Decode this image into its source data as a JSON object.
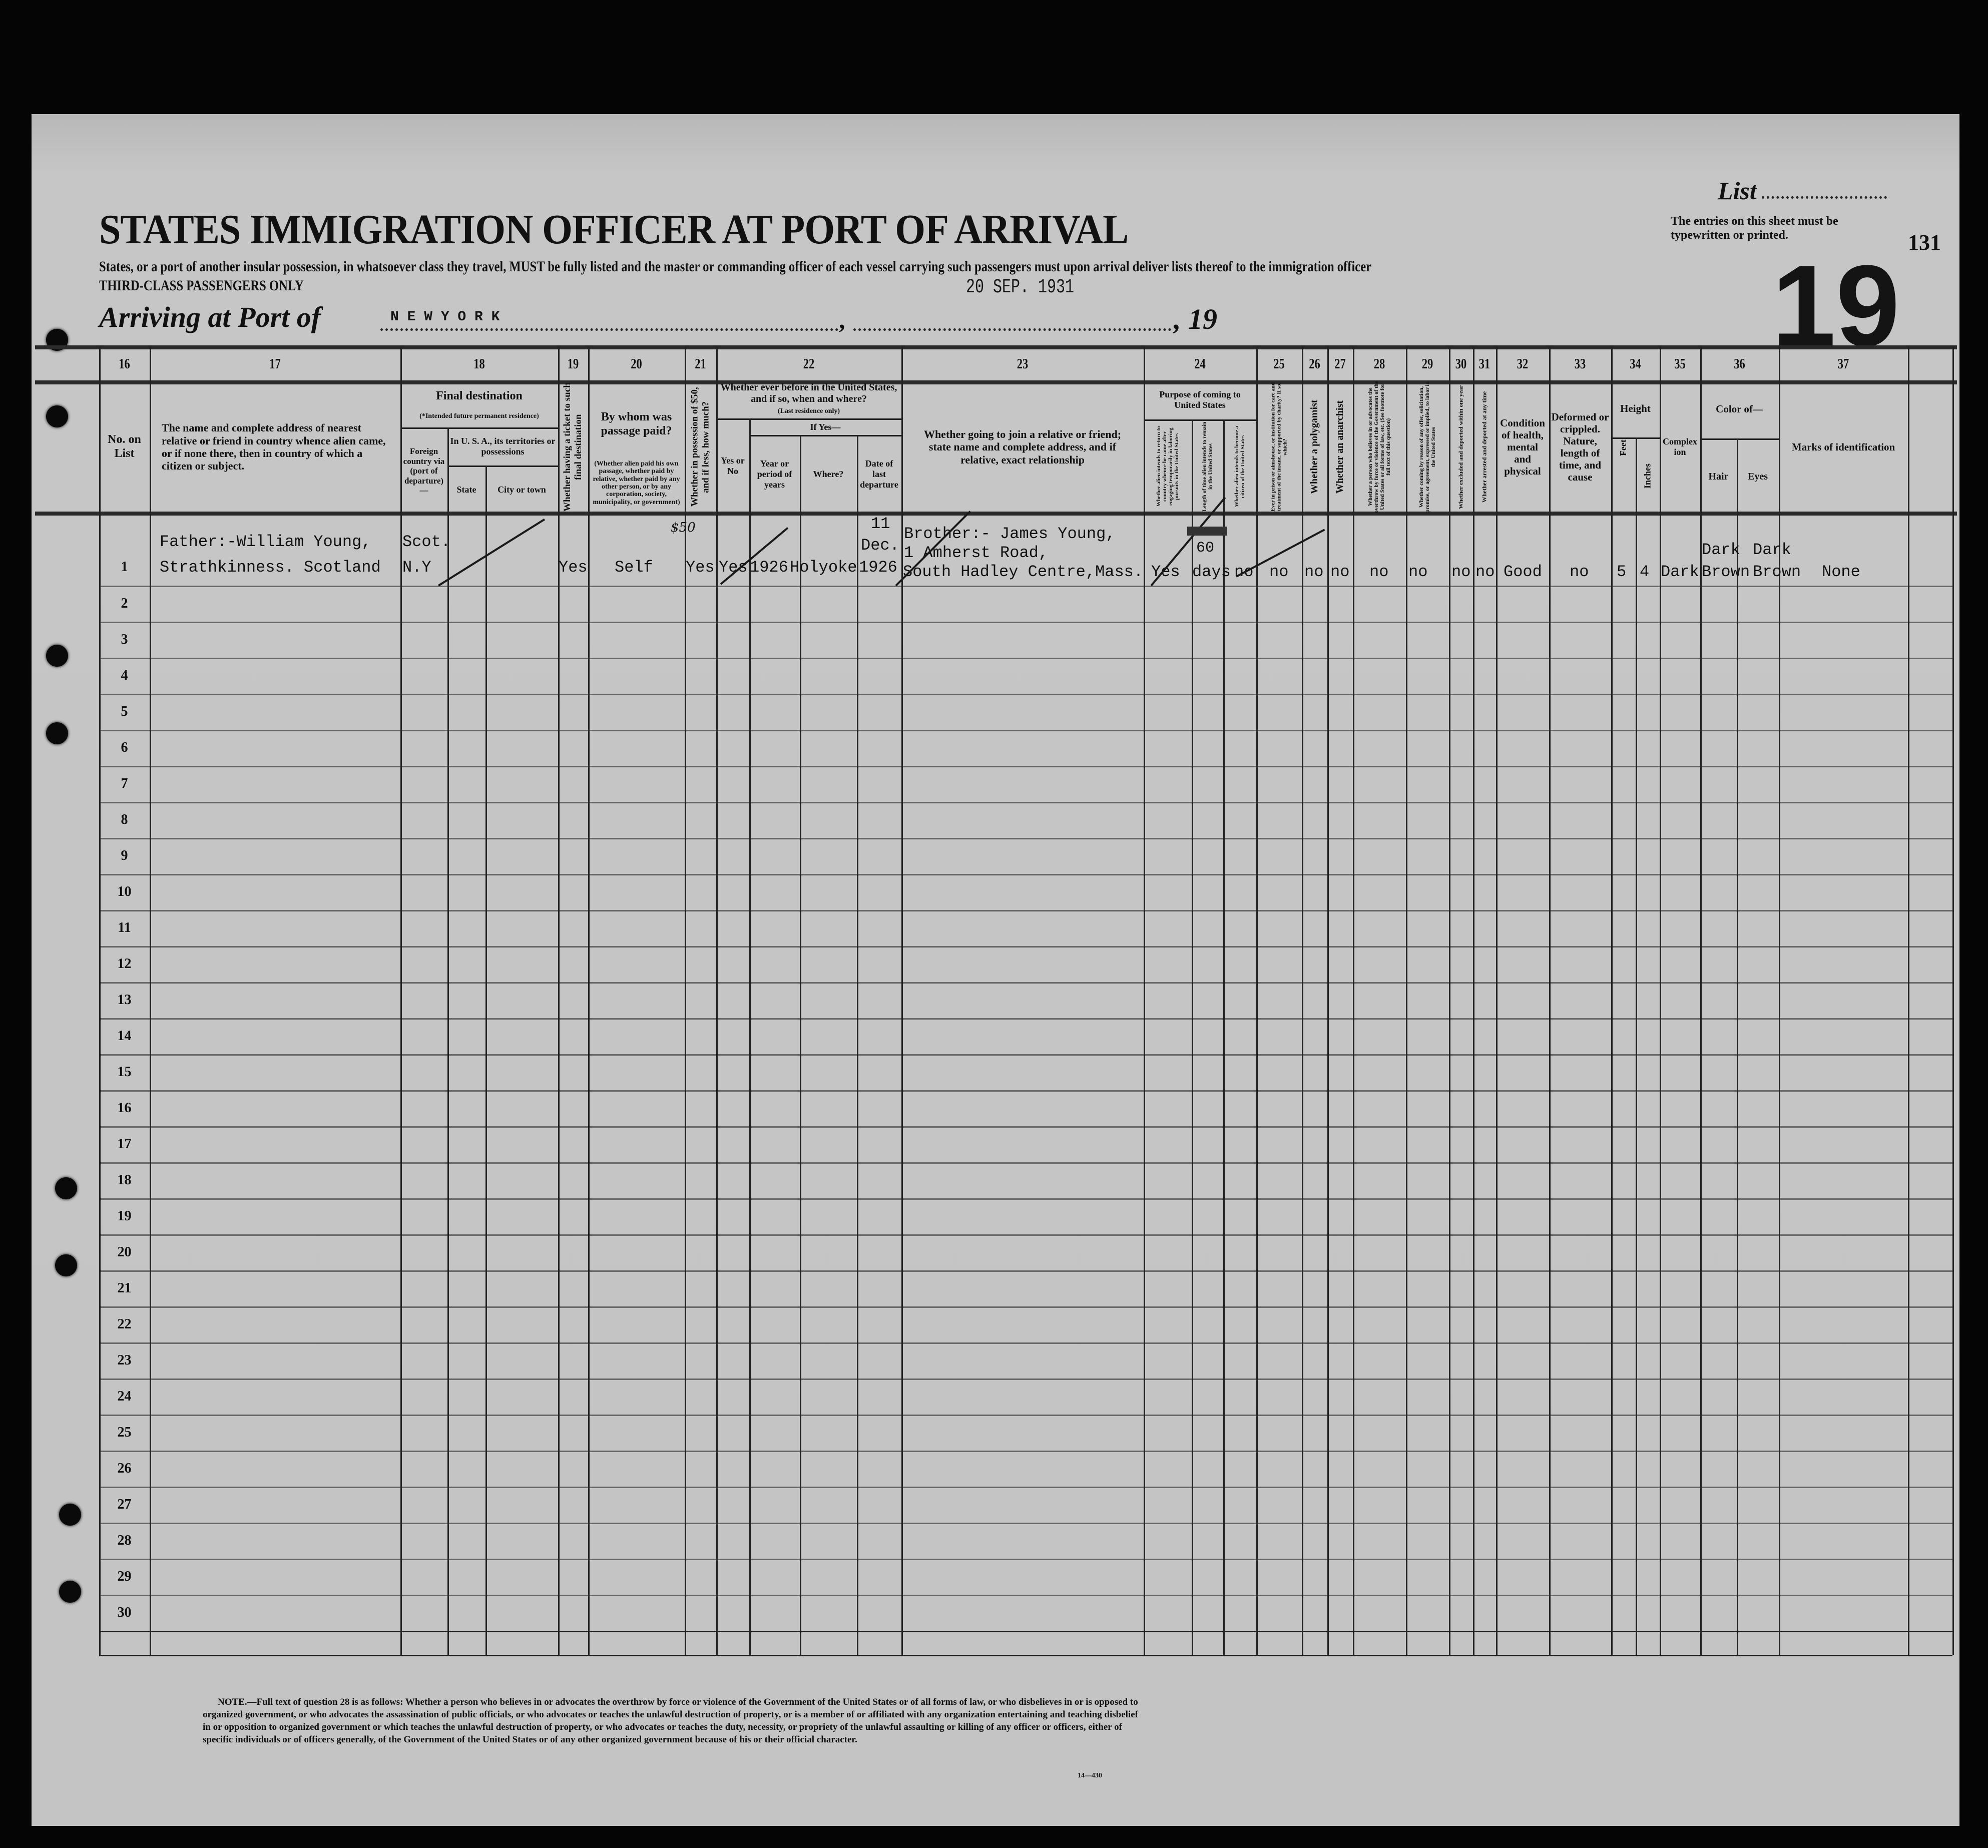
{
  "document": {
    "title": "STATES IMMIGRATION OFFICER AT PORT OF ARRIVAL",
    "subtitle": "States, or a port of another insular possession, in whatsoever class they travel, MUST be fully listed and the master or commanding officer of each vessel carrying such passengers must upon arrival deliver lists thereof to the immigration officer",
    "class_line": "THIRD-CLASS PASSENGERS ONLY",
    "date_stamp": "20 SEP. 1931",
    "arriving_label": "Arriving at Port of",
    "port": "N E W   Y O R K",
    "comma": ",",
    "year_prefix": ", 19",
    "list_label": "List",
    "instructions": "The entries on this sheet must be typewritten or printed.",
    "sheet_number": "19",
    "stamp_number": "131",
    "form_number": "14—430",
    "note": "NOTE.—Full text of question 28 is as follows: Whether a person who believes in or advocates the overthrow by force or violence of the Government of the United States or of all forms of law, or who disbelieves in or is opposed to organized government, or who advocates the assassination of public officials, or who advocates or teaches the unlawful destruction of property, or is a member of or affiliated with any organization entertaining and teaching disbelief in or opposition to organized government or which teaches the unlawful destruction of property, or who advocates or teaches the duty, necessity, or propriety of the unlawful assaulting or killing of any officer or officers, either of specific individuals or of officers generally, of the Government of the United States or of any other organized government because of his or their official character."
  },
  "column_numbers": [
    "16",
    "17",
    "18",
    "19",
    "20",
    "21",
    "22",
    "23",
    "24",
    "25",
    "26",
    "27",
    "28",
    "29",
    "30",
    "31",
    "32",
    "33",
    "34",
    "35",
    "36",
    "37"
  ],
  "headers": {
    "c16": "No. on List",
    "c17": "The name and complete address of nearest relative or friend in country whence alien came, or if none there, then in country of which a citizen or subject.",
    "c18_title": "Final destination",
    "c18_note": "(*Intended future permanent residence)",
    "c18_foreign": "Foreign country via (port of departure)—",
    "c18_usa": "In U. S. A., its territories or possessions",
    "c18_state": "State",
    "c18_city": "City or town",
    "c19": "Whether having a ticket to such final destination",
    "c20_title": "By whom was passage paid?",
    "c20_note": "(Whether alien paid his own passage, whether paid by relative, whether paid by any other person, or by any corporation, society, municipality, or government)",
    "c21": "Whether in possession of $50, and if less, how much?",
    "c22_title": "Whether ever before in the United States, and if so, when and where?",
    "c22_note": "(Last residence only)",
    "c22_yesno": "Yes or No",
    "c22_ifyes": "If Yes—",
    "c22_year": "Year or period of years",
    "c22_where": "Where?",
    "c22_date": "Date of last departure",
    "c23": "Whether going to join a relative or friend; state name and complete address, and if relative, exact relationship",
    "c24_title": "Purpose of coming to United States",
    "c24_a": "Whether alien intends to return to country whence he came after engaging temporarily in laboring pursuits in the United States",
    "c24_b": "Length of time alien intends to remain in the United States",
    "c24_c": "Whether alien intends to become a citizen of the United States",
    "c25": "Ever in prison or almshouse, or institution for care and treatment of the insane, or supported by charity? If so, which?",
    "c26": "Whether a polygamist",
    "c27": "Whether an anarchist",
    "c28": "Whether a person who believes in or advocates the overthrow by force or violence of the Government of the United States or all forms of law, etc. (See footnote for full text of this question)",
    "c29": "Whether coming by reason of any offer, solicitation, promise, or agreement, expressed or implied, to labor in the United States",
    "c30": "Whether excluded and deported within one year",
    "c31": "Whether arrested and deported at any time",
    "c32": "Condition of health, mental and physical",
    "c33": "Deformed or crippled. Nature, length of time, and cause",
    "c34_title": "Height",
    "c34_feet": "Feet",
    "c34_inches": "Inches",
    "c35": "Complexion",
    "c36_title": "Color of—",
    "c36_hair": "Hair",
    "c36_eyes": "Eyes",
    "c37": "Marks of identification"
  },
  "row_numbers": [
    "1",
    "2",
    "3",
    "4",
    "5",
    "6",
    "7",
    "8",
    "9",
    "10",
    "11",
    "12",
    "13",
    "14",
    "15",
    "16",
    "17",
    "18",
    "19",
    "20",
    "21",
    "22",
    "23",
    "24",
    "25",
    "26",
    "27",
    "28",
    "29",
    "30"
  ],
  "entry": {
    "relative_line1": "Father:-William Young,",
    "relative_line2": "Strathkinness. Scotland",
    "foreign_country": "Scot.",
    "foreign_port": "N.Y",
    "ticket": "Yes",
    "passage_paid_by": "Self",
    "money_amount": "$50",
    "possession_50": "Yes",
    "before_in_us": "Yes",
    "before_year": "1926",
    "before_where": "Holyoke",
    "departure_day": "11",
    "departure_month": "Dec.",
    "departure_year": "1926",
    "join_line1": "Brother:- James Young,",
    "join_line2": "1 Amherst Road,",
    "join_line3": "South Hadley Centre,Mass.",
    "return_intent": "Yes",
    "stay_length_number": "60",
    "stay_length_unit": "days",
    "citizen_intent": "no",
    "prison": "no",
    "polygamist": "no",
    "anarchist": "no",
    "q28": "no",
    "labor_offer": "no",
    "excluded": "no",
    "arrested": "no",
    "health": "Good",
    "deformed": "no",
    "height_feet": "5",
    "height_inches": "4",
    "complexion": "Dark",
    "hair_line1": "Dark",
    "hair_line2": "Brown",
    "eyes_line1": "Dark",
    "eyes_line2": "Brown",
    "marks": "None"
  }
}
